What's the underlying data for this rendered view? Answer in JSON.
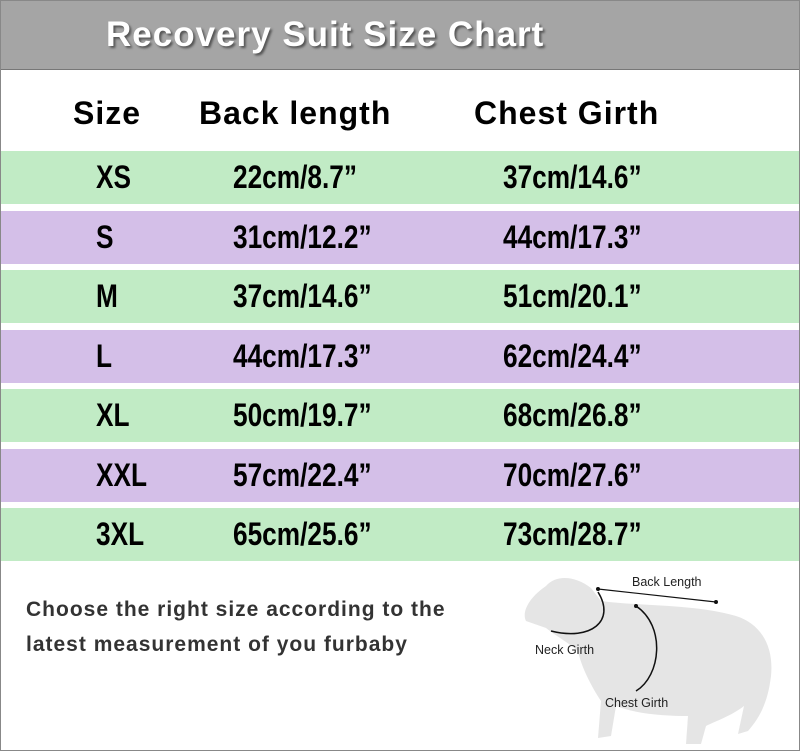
{
  "header": {
    "title": "Recovery Suit Size Chart"
  },
  "table": {
    "columns": [
      "Size",
      "Back length",
      "Chest Girth"
    ],
    "rows": [
      [
        "XS",
        "22cm/8.7”",
        "37cm/14.6”"
      ],
      [
        "S",
        "31cm/12.2”",
        "44cm/17.3”"
      ],
      [
        "M",
        "37cm/14.6”",
        "51cm/20.1”"
      ],
      [
        "L",
        "44cm/17.3”",
        "62cm/24.4”"
      ],
      [
        "XL",
        "50cm/19.7”",
        "68cm/26.8”"
      ],
      [
        "XXL",
        "57cm/22.4”",
        "70cm/27.6”"
      ],
      [
        "3XL",
        "65cm/25.6”",
        "73cm/28.7”"
      ]
    ]
  },
  "note": {
    "lines": [
      "Choose the right size according to the",
      "latest measurement of you furbaby"
    ]
  },
  "diagram": {
    "labels": [
      "Back Length",
      "Neck Girth",
      "Chest Girth"
    ]
  }
}
